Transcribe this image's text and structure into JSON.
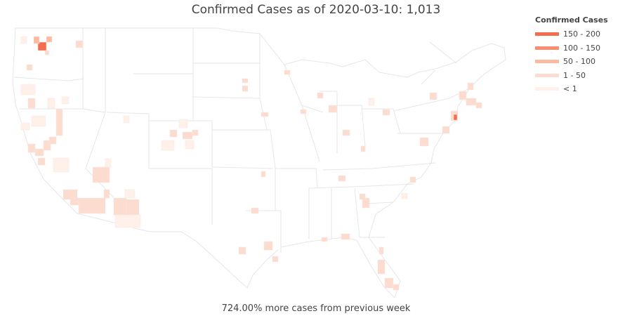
{
  "title": "Confirmed Cases as of 2020-03-10: 1,013",
  "footer": "724.00% more cases from previous week",
  "legend": {
    "title": "Confirmed Cases",
    "items": [
      {
        "label": "150 - 200",
        "color": "#f46d4e"
      },
      {
        "label": "100 - 150",
        "color": "#fb8f6f"
      },
      {
        "label": "50 - 100",
        "color": "#fcbba1"
      },
      {
        "label": "1 - 50",
        "color": "#fddcd0"
      },
      {
        "label": "< 1",
        "color": "#fff0ea"
      }
    ]
  },
  "colors": {
    "border": "#e6e6e6",
    "land": "#ffffff"
  }
}
